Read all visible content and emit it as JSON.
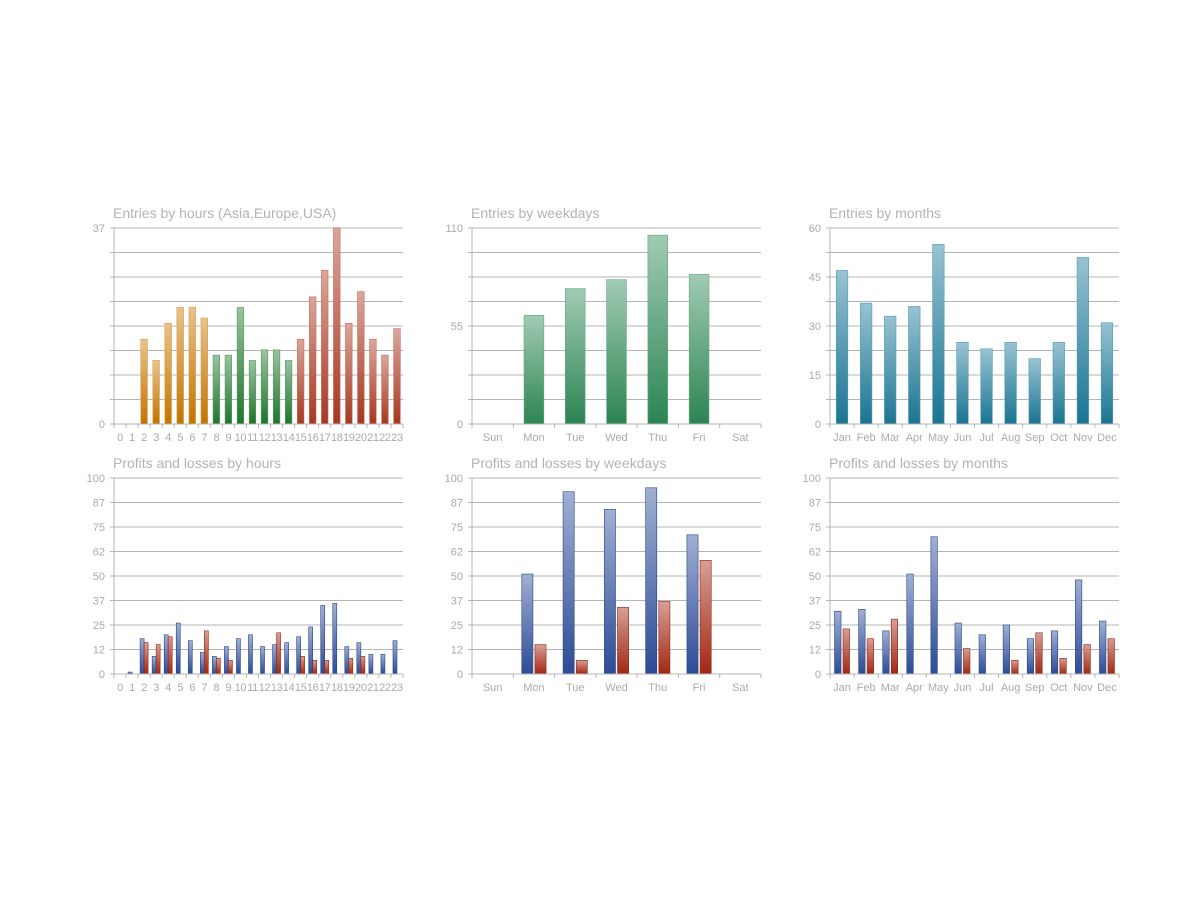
{
  "chart_data": [
    {
      "type": "bar",
      "title": "Entries by hours (Asia,Europe,USA)",
      "categories": [
        "0",
        "1",
        "2",
        "3",
        "4",
        "5",
        "6",
        "7",
        "8",
        "9",
        "10",
        "11",
        "12",
        "13",
        "14",
        "15",
        "16",
        "17",
        "18",
        "19",
        "20",
        "21",
        "22",
        "23"
      ],
      "values": [
        0,
        0,
        16,
        12,
        19,
        22,
        22,
        20,
        13,
        13,
        22,
        12,
        14,
        14,
        12,
        16,
        24,
        29,
        37,
        19,
        25,
        16,
        13,
        18
      ],
      "bar_colors": [
        "#cc7a00",
        "#cc7a00",
        "#cc7a00",
        "#cc7a00",
        "#cc7a00",
        "#cc7a00",
        "#cc7a00",
        "#cc7a00",
        "#1f7a2e",
        "#1f7a2e",
        "#1f7a2e",
        "#1f7a2e",
        "#1f7a2e",
        "#1f7a2e",
        "#1f7a2e",
        "#b03a22",
        "#b03a22",
        "#b03a22",
        "#b03a22",
        "#b03a22",
        "#b03a22",
        "#b03a22",
        "#b03a22",
        "#b03a22"
      ],
      "yticks": [
        "0",
        "",
        "",
        "",
        "",
        "",
        "",
        "",
        "37"
      ],
      "ylim": [
        0,
        37
      ],
      "grid": true
    },
    {
      "type": "bar",
      "title": "Entries by weekdays",
      "categories": [
        "Sun",
        "Mon",
        "Tue",
        "Wed",
        "Thu",
        "Fri",
        "Sat"
      ],
      "values": [
        0,
        61,
        76,
        81,
        106,
        84,
        0
      ],
      "bar_colors": [
        "#2e8b57",
        "#2e8b57",
        "#2e8b57",
        "#2e8b57",
        "#2e8b57",
        "#2e8b57",
        "#2e8b57"
      ],
      "yticks": [
        "0",
        "",
        "",
        "",
        "55",
        "",
        "",
        "",
        "110"
      ],
      "ylim": [
        0,
        110
      ],
      "grid": true
    },
    {
      "type": "bar",
      "title": "Entries by months",
      "categories": [
        "Jan",
        "Feb",
        "Mar",
        "Apr",
        "May",
        "Jun",
        "Jul",
        "Aug",
        "Sep",
        "Oct",
        "Nov",
        "Dec"
      ],
      "values": [
        47,
        37,
        33,
        36,
        55,
        25,
        23,
        25,
        20,
        25,
        51,
        31
      ],
      "bar_colors": [
        "#1a7a9a",
        "#1a7a9a",
        "#1a7a9a",
        "#1a7a9a",
        "#1a7a9a",
        "#1a7a9a",
        "#1a7a9a",
        "#1a7a9a",
        "#1a7a9a",
        "#1a7a9a",
        "#1a7a9a",
        "#1a7a9a"
      ],
      "yticks": [
        "0",
        "",
        "15",
        "",
        "30",
        "",
        "45",
        "",
        "60"
      ],
      "ylim": [
        0,
        60
      ],
      "grid": true
    },
    {
      "type": "bar",
      "title": "Profits and losses by hours",
      "categories": [
        "0",
        "1",
        "2",
        "3",
        "4",
        "5",
        "6",
        "7",
        "8",
        "9",
        "10",
        "11",
        "12",
        "13",
        "14",
        "15",
        "16",
        "17",
        "18",
        "19",
        "20",
        "21",
        "22",
        "23"
      ],
      "series": [
        {
          "values": [
            0,
            1,
            18,
            9,
            20,
            26,
            17,
            11,
            9,
            14,
            18,
            20,
            14,
            15,
            16,
            19,
            24,
            35,
            36,
            14,
            16,
            10,
            10,
            17
          ],
          "color": "#2e4f9e"
        },
        {
          "values": [
            0,
            0,
            16,
            15,
            19,
            0,
            0,
            22,
            8,
            7,
            0,
            0,
            0,
            21,
            0,
            9,
            7,
            7,
            0,
            8,
            9,
            0,
            0,
            0
          ],
          "color": "#a82a14"
        }
      ],
      "yticks": [
        "0",
        "12",
        "25",
        "37",
        "50",
        "62",
        "75",
        "87",
        "100"
      ],
      "ylim": [
        0,
        100
      ],
      "grid": true
    },
    {
      "type": "bar",
      "title": "Profits and losses by weekdays",
      "categories": [
        "Sun",
        "Mon",
        "Tue",
        "Wed",
        "Thu",
        "Fri",
        "Sat"
      ],
      "series": [
        {
          "values": [
            0,
            51,
            93,
            84,
            95,
            71,
            0
          ],
          "color": "#2e4f9e"
        },
        {
          "values": [
            0,
            15,
            7,
            34,
            37,
            58,
            0
          ],
          "color": "#a82a14"
        }
      ],
      "yticks": [
        "0",
        "12",
        "25",
        "37",
        "50",
        "62",
        "75",
        "87",
        "100"
      ],
      "ylim": [
        0,
        100
      ],
      "grid": true
    },
    {
      "type": "bar",
      "title": "Profits and losses by months",
      "categories": [
        "Jan",
        "Feb",
        "Mar",
        "Apr",
        "May",
        "Jun",
        "Jul",
        "Aug",
        "Sep",
        "Oct",
        "Nov",
        "Dec"
      ],
      "series": [
        {
          "values": [
            32,
            33,
            22,
            51,
            70,
            26,
            20,
            25,
            18,
            22,
            48,
            27
          ],
          "color": "#2e4f9e"
        },
        {
          "values": [
            23,
            18,
            28,
            0,
            0,
            13,
            0,
            7,
            21,
            8,
            15,
            18
          ],
          "color": "#a82a14"
        }
      ],
      "yticks": [
        "0",
        "12",
        "25",
        "37",
        "50",
        "62",
        "75",
        "87",
        "100"
      ],
      "ylim": [
        0,
        100
      ],
      "grid": true
    }
  ]
}
